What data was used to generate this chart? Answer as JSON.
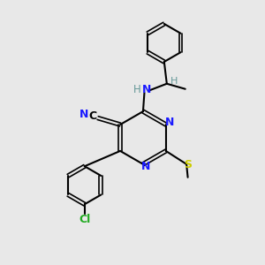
{
  "bg_color": "#e8e8e8",
  "bond_color": "#000000",
  "N_color": "#1a1aff",
  "S_color": "#cccc00",
  "Cl_color": "#22aa22",
  "C_color": "#000000",
  "H_color": "#669999",
  "figsize": [
    3.0,
    3.0
  ],
  "dpi": 100,
  "xlim": [
    0,
    10
  ],
  "ylim": [
    0,
    10
  ]
}
